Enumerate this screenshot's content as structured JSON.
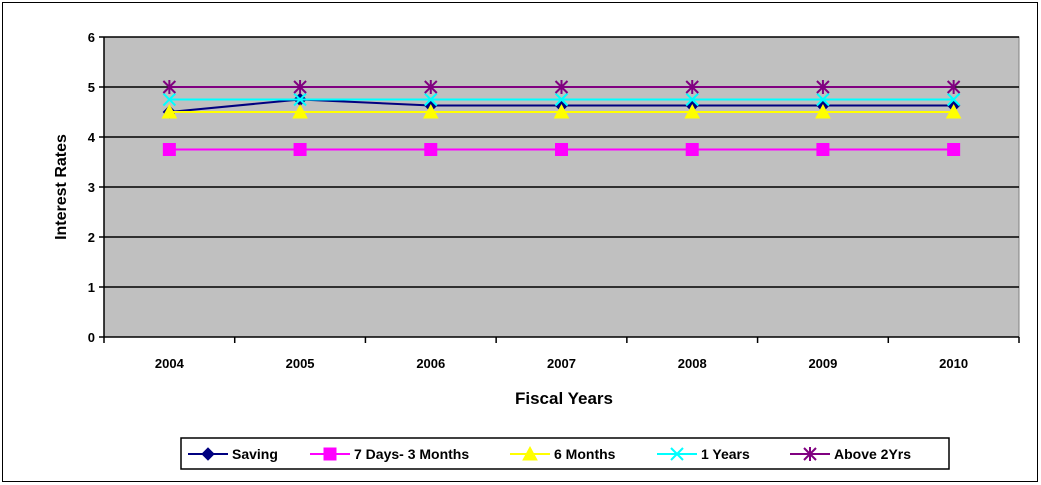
{
  "chart_data": {
    "type": "line",
    "title": "",
    "xlabel": "Fiscal Years",
    "ylabel": "Interest Rates",
    "categories": [
      "2004",
      "2005",
      "2006",
      "2007",
      "2008",
      "2009",
      "2010"
    ],
    "ylim": [
      0,
      6
    ],
    "yticks": [
      "0",
      "1",
      "2",
      "3",
      "4",
      "5",
      "6"
    ],
    "grid": true,
    "legend_position": "bottom",
    "plot_background": "#c0c0c0",
    "series": [
      {
        "name": "Saving",
        "values": [
          4.5,
          4.75,
          4.63,
          4.63,
          4.63,
          4.63,
          4.63
        ],
        "color": "#000080",
        "marker": "diamond"
      },
      {
        "name": "7 Days- 3 Months",
        "values": [
          3.75,
          3.75,
          3.75,
          3.75,
          3.75,
          3.75,
          3.75
        ],
        "color": "#ff00ff",
        "marker": "square"
      },
      {
        "name": "6 Months",
        "values": [
          4.5,
          4.5,
          4.5,
          4.5,
          4.5,
          4.5,
          4.5
        ],
        "color": "#ffff00",
        "marker": "triangle"
      },
      {
        "name": "1 Years",
        "values": [
          4.75,
          4.75,
          4.75,
          4.75,
          4.75,
          4.75,
          4.75
        ],
        "color": "#00ffff",
        "marker": "x"
      },
      {
        "name": "Above 2Yrs",
        "values": [
          5,
          5,
          5,
          5,
          5,
          5,
          5
        ],
        "color": "#800080",
        "marker": "star"
      }
    ]
  }
}
